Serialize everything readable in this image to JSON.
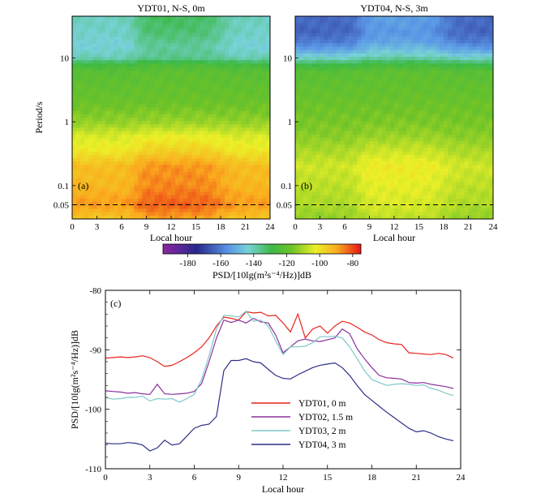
{
  "chart_data": [
    {
      "type": "heatmap",
      "panel": "(a)",
      "title": "YDT01, N-S, 0m",
      "xlabel": "Local hour",
      "ylabel": "Period/s",
      "xlim": [
        0,
        24
      ],
      "xticks": [
        "0",
        "3",
        "6",
        "9",
        "12",
        "15",
        "18",
        "21",
        "24"
      ],
      "yscale": "log",
      "ylim": [
        0.03,
        45
      ],
      "yticks": [
        "0.05",
        "0.1",
        "1",
        "10"
      ],
      "dashed_line_period": 0.05,
      "profile": [
        [
          0.03,
          -95
        ],
        [
          0.05,
          -88
        ],
        [
          0.1,
          -92
        ],
        [
          0.2,
          -93
        ],
        [
          0.35,
          -101
        ],
        [
          0.6,
          -105
        ],
        [
          1,
          -113
        ],
        [
          2,
          -118
        ],
        [
          6,
          -122
        ],
        [
          8,
          -128
        ],
        [
          10,
          -140
        ],
        [
          15,
          -144
        ],
        [
          25,
          -142
        ],
        [
          45,
          -141
        ]
      ],
      "day_boost": 6
    },
    {
      "type": "heatmap",
      "panel": "(b)",
      "title": "YDT04, N-S, 3m",
      "xlabel": "Local hour",
      "ylabel": "",
      "xlim": [
        0,
        24
      ],
      "xticks": [
        "0",
        "3",
        "6",
        "9",
        "12",
        "15",
        "18",
        "21",
        "24"
      ],
      "yscale": "log",
      "ylim": [
        0.03,
        45
      ],
      "yticks": [
        "0.05",
        "0.1",
        "1",
        "10"
      ],
      "dashed_line_period": 0.05,
      "profile": [
        [
          0.03,
          -113
        ],
        [
          0.05,
          -110
        ],
        [
          0.1,
          -108
        ],
        [
          0.2,
          -106
        ],
        [
          0.35,
          -110
        ],
        [
          0.6,
          -114
        ],
        [
          1,
          -116
        ],
        [
          2,
          -118
        ],
        [
          6,
          -122
        ],
        [
          8,
          -130
        ],
        [
          10,
          -142
        ],
        [
          13,
          -152
        ],
        [
          18,
          -160
        ],
        [
          25,
          -164
        ],
        [
          45,
          -163
        ]
      ],
      "day_boost": 5
    },
    {
      "type": "colorbar",
      "label": "PSD/[10lg(m²s⁻⁴/Hz)]dB",
      "range": [
        -195,
        -75
      ],
      "ticks": [
        "-180",
        "-160",
        "-140",
        "-120",
        "-100",
        "-80"
      ],
      "tick_values": [
        -180,
        -160,
        -140,
        -120,
        -100,
        -80
      ]
    },
    {
      "type": "line",
      "panel": "(c)",
      "xlabel": "Local hour",
      "ylabel": "PSD/[10lg(m²s⁻⁴/Hz)]dB",
      "xlim": [
        0,
        24
      ],
      "ylim": [
        -110,
        -80
      ],
      "xticks": [
        "0",
        "3",
        "6",
        "9",
        "12",
        "15",
        "18",
        "21",
        "24"
      ],
      "yticks": [
        "-80",
        "-90",
        "-100",
        "-110"
      ],
      "series": [
        {
          "name": "YDT01, 0 m",
          "color": "#e8241c",
          "x": [
            0,
            0.5,
            1,
            1.5,
            2,
            2.5,
            3,
            3.5,
            4,
            4.5,
            5,
            5.5,
            6,
            6.5,
            7,
            7.5,
            8,
            8.5,
            9,
            9.5,
            10,
            10.5,
            11,
            11.5,
            12,
            12.5,
            13,
            13.5,
            14,
            14.5,
            15,
            15.5,
            16,
            16.5,
            17,
            17.5,
            18,
            18.5,
            19,
            19.5,
            20,
            20.5,
            21,
            21.5,
            22,
            22.5,
            23,
            23.5
          ],
          "values": [
            -91.4,
            -91.3,
            -91.2,
            -91.3,
            -91.2,
            -91.0,
            -91.3,
            -92.0,
            -92.8,
            -92.6,
            -92.0,
            -91.3,
            -90.5,
            -89.5,
            -88.0,
            -86.0,
            -84.5,
            -84.7,
            -85.0,
            -83.6,
            -83.8,
            -83.7,
            -84.3,
            -84.2,
            -85.5,
            -87.0,
            -84.0,
            -88.0,
            -86.5,
            -86.0,
            -87.2,
            -86.0,
            -85.2,
            -85.5,
            -86.2,
            -87.0,
            -87.5,
            -88.3,
            -88.8,
            -89.0,
            -89.1,
            -90.5,
            -90.6,
            -90.7,
            -90.8,
            -90.6,
            -90.8,
            -91.4
          ]
        },
        {
          "name": "YDT02, 1.5 m",
          "color": "#8b2f9c",
          "x": [
            0,
            0.5,
            1,
            1.5,
            2,
            2.5,
            3,
            3.5,
            4,
            4.5,
            5,
            5.5,
            6,
            6.5,
            7,
            7.5,
            8,
            8.5,
            9,
            9.5,
            10,
            10.5,
            11,
            11.5,
            12,
            12.5,
            13,
            13.5,
            14,
            14.5,
            15,
            15.5,
            16,
            16.5,
            17,
            17.5,
            18,
            18.5,
            19,
            19.5,
            20,
            20.5,
            21,
            21.5,
            22,
            22.5,
            23,
            23.5
          ],
          "values": [
            -96.9,
            -97.0,
            -97.1,
            -97.3,
            -97.2,
            -97.4,
            -97.5,
            -95.8,
            -97.4,
            -97.5,
            -97.4,
            -97.3,
            -97.0,
            -95.7,
            -92.0,
            -88.0,
            -85.0,
            -85.4,
            -85.0,
            -85.5,
            -84.7,
            -85.3,
            -85.5,
            -87.5,
            -90.5,
            -89.5,
            -88.5,
            -88.2,
            -88.5,
            -88.6,
            -88.3,
            -88.0,
            -86.5,
            -87.3,
            -89.8,
            -91.5,
            -93.0,
            -94.3,
            -94.7,
            -94.8,
            -94.9,
            -95.5,
            -95.6,
            -95.5,
            -95.8,
            -96.0,
            -96.2,
            -96.5
          ]
        },
        {
          "name": "YDT03, 2 m",
          "color": "#7ec8c8",
          "x": [
            0,
            0.5,
            1,
            1.5,
            2,
            2.5,
            3,
            3.5,
            4,
            4.5,
            5,
            5.5,
            6,
            6.5,
            7,
            7.5,
            8,
            8.5,
            9,
            9.5,
            10,
            10.5,
            11,
            11.5,
            12,
            12.5,
            13,
            13.5,
            14,
            14.5,
            15,
            15.5,
            16,
            16.5,
            17,
            17.5,
            18,
            18.5,
            19,
            19.5,
            20,
            20.5,
            21,
            21.5,
            22,
            22.5,
            23,
            23.5
          ],
          "values": [
            -98.0,
            -98.3,
            -98.2,
            -98.0,
            -98.0,
            -97.8,
            -98.6,
            -98.2,
            -98.3,
            -98.2,
            -98.8,
            -98.2,
            -97.5,
            -95.0,
            -91.0,
            -86.5,
            -84.2,
            -84.3,
            -84.5,
            -83.5,
            -85.2,
            -85.0,
            -86.0,
            -88.5,
            -90.8,
            -89.5,
            -89.5,
            -89.4,
            -88.8,
            -87.8,
            -87.8,
            -87.7,
            -88.0,
            -89.5,
            -91.5,
            -93.5,
            -95.0,
            -95.5,
            -96.0,
            -95.8,
            -95.7,
            -95.8,
            -96.0,
            -95.9,
            -96.5,
            -96.8,
            -97.3,
            -97.7
          ]
        },
        {
          "name": "YDT04, 3 m",
          "color": "#2c2f86",
          "x": [
            0,
            0.5,
            1,
            1.5,
            2,
            2.5,
            3,
            3.5,
            4,
            4.5,
            5,
            5.5,
            6,
            6.5,
            7,
            7.5,
            8,
            8.5,
            9,
            9.5,
            10,
            10.5,
            11,
            11.5,
            12,
            12.5,
            13,
            13.5,
            14,
            14.5,
            15,
            15.5,
            16,
            16.5,
            17,
            17.5,
            18,
            18.5,
            19,
            19.5,
            20,
            20.5,
            21,
            21.5,
            22,
            22.5,
            23,
            23.5
          ],
          "values": [
            -105.7,
            -105.8,
            -105.8,
            -105.6,
            -105.7,
            -106.0,
            -107.0,
            -106.5,
            -105.2,
            -106.0,
            -105.8,
            -104.5,
            -103.2,
            -102.7,
            -102.5,
            -101.2,
            -93.5,
            -91.8,
            -91.8,
            -91.5,
            -92.0,
            -92.2,
            -93.3,
            -94.3,
            -94.8,
            -94.9,
            -94.2,
            -93.6,
            -93.0,
            -92.6,
            -92.4,
            -92.2,
            -93.0,
            -94.3,
            -96.0,
            -97.5,
            -98.5,
            -99.5,
            -100.5,
            -101.4,
            -102.3,
            -103.2,
            -103.8,
            -103.6,
            -104.0,
            -104.6,
            -105.0,
            -105.3
          ]
        }
      ],
      "legend_position": "lower-center",
      "panel_label": "(c)"
    }
  ]
}
